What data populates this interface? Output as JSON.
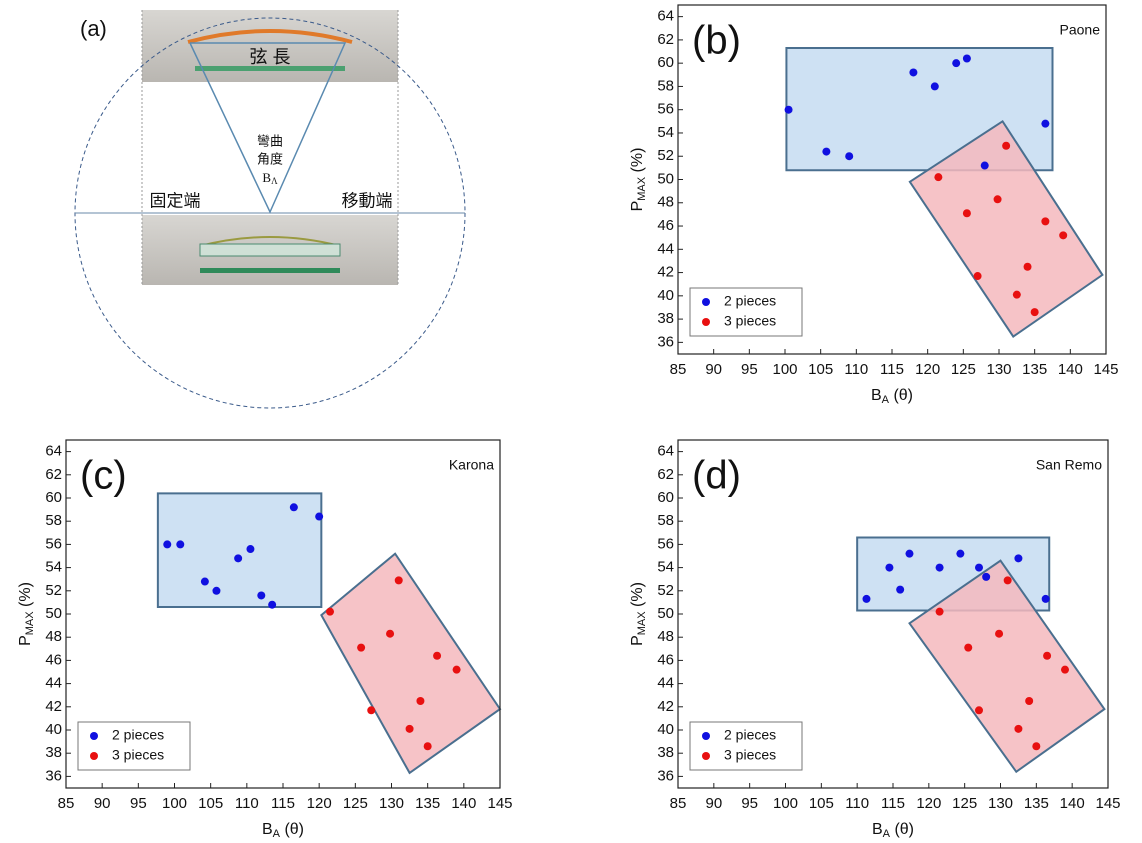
{
  "diagram": {
    "panel_label": "(a)",
    "chord": "弦 長",
    "angle_lines": [
      "彎曲",
      "角度"
    ],
    "angle_symbol": [
      "B",
      "Λ"
    ],
    "fixed_end": "固定端",
    "moving_end": "移動端"
  },
  "chart_data": [
    {
      "type": "scatter",
      "panel_label": "(b)",
      "site": "Paone",
      "xlabel": [
        "B",
        "A",
        " (θ)"
      ],
      "ylabel": [
        "P",
        "MAX",
        " (%)"
      ],
      "xlim": [
        85,
        145
      ],
      "ylim": [
        35,
        65
      ],
      "xticks": [
        85,
        90,
        95,
        100,
        105,
        110,
        115,
        120,
        125,
        130,
        135,
        140,
        145
      ],
      "yticks": [
        36,
        38,
        40,
        42,
        44,
        46,
        48,
        50,
        52,
        54,
        56,
        58,
        60,
        62,
        64
      ],
      "legend": "lower left",
      "series": [
        {
          "name": "2 pieces",
          "color": "#1010e0",
          "x": [
            100.5,
            105.8,
            109,
            118,
            121,
            124,
            125.5,
            128,
            136.5
          ],
          "values": [
            56,
            52.4,
            52,
            59.2,
            58,
            60,
            60.4,
            51.2,
            54.8
          ]
        },
        {
          "name": "3 pieces",
          "color": "#e81010",
          "x": [
            121.5,
            125.5,
            127,
            129.8,
            131,
            132.5,
            134,
            135,
            136.5,
            139
          ],
          "values": [
            50.2,
            47.1,
            41.7,
            48.3,
            52.9,
            40.1,
            42.5,
            38.6,
            46.4,
            45.2
          ]
        }
      ],
      "regions": [
        {
          "color": "#c6dcf1",
          "x": [
            100.2,
            137.5,
            137.5,
            100.2
          ],
          "y": [
            61.3,
            61.3,
            50.8,
            50.8
          ]
        },
        {
          "color": "#f5b9bd",
          "x": [
            117.5,
            130.5,
            144.5,
            132
          ],
          "y": [
            49.8,
            55,
            41.8,
            36.5
          ]
        }
      ]
    },
    {
      "type": "scatter",
      "panel_label": "(c)",
      "site": "Karona",
      "xlabel": [
        "B",
        "A",
        " (θ)"
      ],
      "ylabel": [
        "P",
        "MAX",
        " (%)"
      ],
      "xlim": [
        85,
        145
      ],
      "ylim": [
        35,
        65
      ],
      "xticks": [
        85,
        90,
        95,
        100,
        105,
        110,
        115,
        120,
        125,
        130,
        135,
        140,
        145
      ],
      "yticks": [
        36,
        38,
        40,
        42,
        44,
        46,
        48,
        50,
        52,
        54,
        56,
        58,
        60,
        62,
        64
      ],
      "legend": "lower left",
      "series": [
        {
          "name": "2 pieces",
          "color": "#1010e0",
          "x": [
            99,
            100.8,
            104.2,
            105.8,
            108.8,
            110.5,
            112,
            113.5,
            116.5,
            120
          ],
          "values": [
            56,
            56,
            52.8,
            52,
            54.8,
            55.6,
            51.6,
            50.8,
            59.2,
            58.4
          ]
        },
        {
          "name": "3 pieces",
          "color": "#e81010",
          "x": [
            121.5,
            125.8,
            127.2,
            129.8,
            131,
            132.5,
            134,
            135,
            136.3,
            139
          ],
          "values": [
            50.2,
            47.1,
            41.7,
            48.3,
            52.9,
            40.1,
            42.5,
            38.6,
            46.4,
            45.2
          ]
        }
      ],
      "regions": [
        {
          "color": "#c6dcf1",
          "x": [
            97.7,
            120.3,
            120.3,
            97.7
          ],
          "y": [
            60.4,
            60.4,
            50.6,
            50.6
          ]
        },
        {
          "color": "#f5b9bd",
          "x": [
            120.3,
            130.5,
            145,
            132.5
          ],
          "y": [
            49.9,
            55.2,
            41.8,
            36.3
          ]
        }
      ]
    },
    {
      "type": "scatter",
      "panel_label": "(d)",
      "site": "San Remo",
      "xlabel": [
        "B",
        "A",
        " (θ)"
      ],
      "ylabel": [
        "P",
        "MAX",
        " (%)"
      ],
      "xlim": [
        85,
        145
      ],
      "ylim": [
        35,
        65
      ],
      "xticks": [
        85,
        90,
        95,
        100,
        105,
        110,
        115,
        120,
        125,
        130,
        135,
        140,
        145
      ],
      "yticks": [
        36,
        38,
        40,
        42,
        44,
        46,
        48,
        50,
        52,
        54,
        56,
        58,
        60,
        62,
        64
      ],
      "legend": "lower left",
      "series": [
        {
          "name": "2 pieces",
          "color": "#1010e0",
          "x": [
            111.3,
            114.5,
            116,
            117.3,
            121.5,
            124.4,
            127,
            128,
            132.5,
            136.3
          ],
          "values": [
            51.3,
            54,
            52.1,
            55.2,
            54,
            55.2,
            54,
            53.2,
            54.8,
            51.3
          ]
        },
        {
          "name": "3 pieces",
          "color": "#e81010",
          "x": [
            121.5,
            125.5,
            127,
            129.8,
            131,
            132.5,
            134,
            135,
            136.5,
            139
          ],
          "values": [
            50.2,
            47.1,
            41.7,
            48.3,
            52.9,
            40.1,
            42.5,
            38.6,
            46.4,
            45.2
          ]
        }
      ],
      "regions": [
        {
          "color": "#c6dcf1",
          "x": [
            110,
            136.8,
            136.8,
            110
          ],
          "y": [
            56.6,
            56.6,
            50.3,
            50.3
          ]
        },
        {
          "color": "#f5b9bd",
          "x": [
            117.3,
            130,
            144.5,
            132.2
          ],
          "y": [
            49.2,
            54.6,
            41.8,
            36.4
          ]
        }
      ]
    }
  ]
}
